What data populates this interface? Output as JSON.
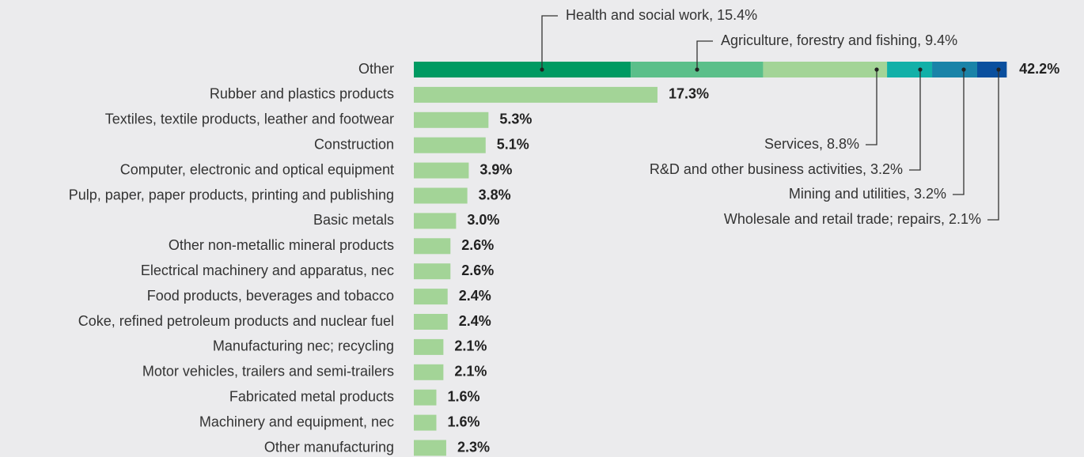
{
  "chart_data": {
    "type": "bar",
    "categories": [
      "Other",
      "Rubber and plastics products",
      "Textiles, textile products, leather and footwear",
      "Construction",
      "Computer, electronic and optical equipment",
      "Pulp, paper, paper products, printing and publishing",
      "Basic metals",
      "Other non-metallic mineral products",
      "Electrical machinery and apparatus, nec",
      "Food products, beverages and tobacco",
      "Coke, refined petroleum products and nuclear fuel",
      "Manufacturing nec; recycling",
      "Motor vehicles, trailers and semi-trailers",
      "Fabricated metal products",
      "Machinery and equipment, nec",
      "Other manufacturing"
    ],
    "values": [
      42.2,
      17.3,
      5.3,
      5.1,
      3.9,
      3.8,
      3.0,
      2.6,
      2.6,
      2.4,
      2.4,
      2.1,
      2.1,
      1.6,
      1.6,
      2.3
    ],
    "value_labels": [
      "42.2%",
      "17.3%",
      "5.3%",
      "5.1%",
      "3.9%",
      "3.8%",
      "3.0%",
      "2.6%",
      "2.6%",
      "2.4%",
      "2.4%",
      "2.1%",
      "2.1%",
      "1.6%",
      "1.6%",
      "2.3%"
    ],
    "color": "#a3d497",
    "other_breakdown": {
      "labels": [
        "Health and social work, 15.4%",
        "Agriculture, forestry and fishing, 9.4%",
        "Services, 8.8%",
        "R&D and other business activities, 3.2%",
        "Mining and utilities, 3.2%",
        "Wholesale and retail trade; repairs, 2.1%"
      ],
      "values": [
        15.4,
        9.4,
        8.8,
        3.2,
        3.2,
        2.1
      ],
      "colors": [
        "#009a62",
        "#5bbf8a",
        "#a3d497",
        "#12b0a8",
        "#1a83a8",
        "#0a4f9e"
      ]
    }
  }
}
